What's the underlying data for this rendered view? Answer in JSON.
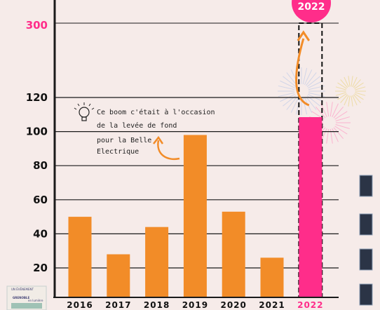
{
  "chart_data": {
    "type": "bar",
    "categories": [
      "2016",
      "2017",
      "2018",
      "2019",
      "2020",
      "2021",
      "2022"
    ],
    "values": [
      50,
      28,
      44,
      98,
      53,
      26,
      300
    ],
    "highlight_category": "2022",
    "highlight_badge": "2022",
    "yticks_lower": [
      "20",
      "40",
      "60",
      "80",
      "100",
      "120"
    ],
    "ytick_upper": "300",
    "axis_break": true,
    "ylim_lower": [
      0,
      120
    ],
    "grid": true,
    "colors": {
      "bar": "#f28c28",
      "highlight": "#ff2d8a",
      "background": "#f6ebe9"
    },
    "annotation": {
      "lines": [
        "Ce boom c'était à l'occasion",
        "de la levée de fond",
        "pour la Belle",
        "Electrique"
      ],
      "icon": "lightbulb-icon",
      "target_category": "2019"
    }
  },
  "logo": {
    "line1": "UN ÉVÉNEMENT",
    "line2": "GRENOBLE",
    "line3": "en lumière"
  }
}
